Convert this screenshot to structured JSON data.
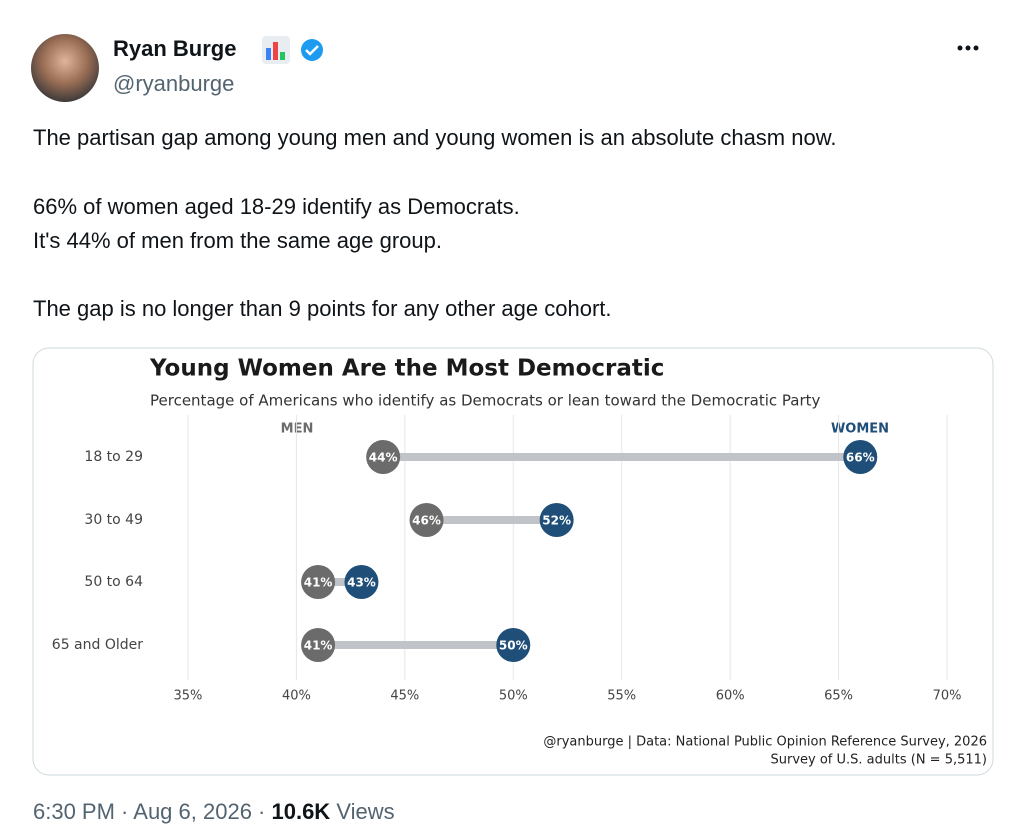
{
  "tweet": {
    "name": "Ryan Burge",
    "handle": "@ryanburge",
    "text": [
      "The partisan gap among young men and young women is an absolute chasm now.",
      "66% of women aged 18-29 identify as Democrats.",
      "It's 44% of men from the same age group.",
      "The gap is no longer than 9 points for any other age cohort."
    ],
    "time": "6:30 PM · Aug 6, 2026 · ",
    "views_count": "10.6K",
    "views_label": " Views"
  },
  "chart_data": {
    "type": "dumbbell",
    "title": "Young Women Are the Most Democratic",
    "subtitle": "Percentage of Americans who identify as Democrats or lean toward the Democratic Party",
    "categories": [
      "18 to 29",
      "30 to 49",
      "50 to 64",
      "65 and Older"
    ],
    "series": [
      {
        "name": "MEN",
        "color": "#6b6b6b",
        "values": [
          44,
          46,
          41,
          41
        ],
        "value_labels": [
          "44%",
          "46%",
          "41%",
          "41%"
        ]
      },
      {
        "name": "WOMEN",
        "color": "#1f4e79",
        "values": [
          66,
          52,
          43,
          50
        ],
        "value_labels": [
          "66%",
          "52%",
          "43%",
          "50%"
        ]
      }
    ],
    "xlim": [
      33,
      72
    ],
    "xticks": [
      {
        "value": 35,
        "label": "35%"
      },
      {
        "value": 40,
        "label": "40%"
      },
      {
        "value": 45,
        "label": "45%"
      },
      {
        "value": 50,
        "label": "50%"
      },
      {
        "value": 55,
        "label": "55%"
      },
      {
        "value": 60,
        "label": "60%"
      },
      {
        "value": 65,
        "label": "65%"
      },
      {
        "value": 70,
        "label": "70%"
      }
    ],
    "grid": true,
    "caption": [
      "@ryanburge | Data: National Public Opinion Reference Survey, 2026",
      "Survey of U.S. adults (N = 5,511)"
    ]
  }
}
